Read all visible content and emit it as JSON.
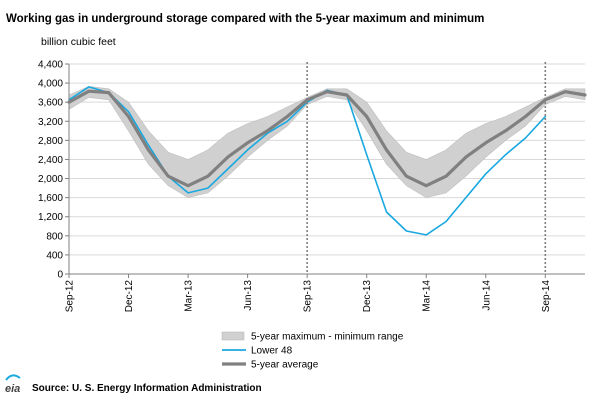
{
  "chart_data": {
    "type": "line",
    "title": "Working gas in underground storage compared with the  5-year maximum and minimum",
    "unit_label": "billion  cubic feet",
    "xlabel": "",
    "ylabel": "",
    "ylim": [
      0,
      4400
    ],
    "y_ticks": [
      0,
      400,
      800,
      1200,
      1600,
      2000,
      2400,
      2800,
      3200,
      3600,
      4000,
      4400
    ],
    "y_tick_labels": [
      "0",
      "400",
      "800",
      "1,200",
      "1,600",
      "2,000",
      "2,400",
      "2,800",
      "3,200",
      "3,600",
      "4,000",
      "4,400"
    ],
    "x_range": [
      "2012-09",
      "2014-11"
    ],
    "x_tick_labels": [
      "Sep-12",
      "Dec-12",
      "Mar-13",
      "Jun-13",
      "Sep-13",
      "Dec-13",
      "Mar-14",
      "Jun-14",
      "Sep-14"
    ],
    "x_ticks": [
      "2012-09",
      "2012-12",
      "2013-03",
      "2013-06",
      "2013-09",
      "2013-12",
      "2014-03",
      "2014-06",
      "2014-09"
    ],
    "vertical_markers": [
      "2013-09",
      "2014-09"
    ],
    "grid": true,
    "legend_position": "bottom",
    "x": [
      "2012-09",
      "2012-10",
      "2012-11",
      "2012-12",
      "2013-01",
      "2013-02",
      "2013-03",
      "2013-04",
      "2013-05",
      "2013-06",
      "2013-07",
      "2013-08",
      "2013-09",
      "2013-10",
      "2013-11",
      "2013-12",
      "2014-01",
      "2014-02",
      "2014-03",
      "2014-04",
      "2014-05",
      "2014-06",
      "2014-07",
      "2014-08",
      "2014-09",
      "2014-10",
      "2014-11"
    ],
    "series": [
      {
        "name": "5-year maximum - minimum range",
        "kind": "band",
        "color": "#d0d0d0",
        "upper": [
          3750,
          3930,
          3880,
          3600,
          3000,
          2550,
          2400,
          2600,
          2950,
          3150,
          3300,
          3500,
          3700,
          3880,
          3880,
          3600,
          3000,
          2550,
          2400,
          2600,
          2950,
          3150,
          3300,
          3500,
          3700,
          3880,
          3880
        ],
        "lower": [
          3450,
          3700,
          3650,
          3000,
          2300,
          1850,
          1600,
          1700,
          2050,
          2450,
          2800,
          3100,
          3550,
          3720,
          3650,
          3000,
          2300,
          1850,
          1600,
          1700,
          2050,
          2450,
          2800,
          3100,
          3550,
          3720,
          3650
        ]
      },
      {
        "name": "Lower 48",
        "kind": "line",
        "color": "#19a8e0",
        "values": [
          3650,
          3920,
          3800,
          3400,
          2700,
          2050,
          1700,
          1800,
          2200,
          2600,
          2950,
          3200,
          3600,
          3850,
          3750,
          2500,
          1300,
          900,
          820,
          1100,
          1600,
          2100,
          2500,
          2850,
          3300,
          null,
          null
        ]
      },
      {
        "name": "5-year average",
        "kind": "line",
        "color": "#808080",
        "values": [
          3600,
          3830,
          3800,
          3300,
          2600,
          2050,
          1850,
          2050,
          2450,
          2750,
          3000,
          3300,
          3650,
          3820,
          3750,
          3300,
          2600,
          2050,
          1850,
          2050,
          2450,
          2750,
          3000,
          3300,
          3650,
          3820,
          3750
        ]
      }
    ]
  },
  "source": "Source:  U. S. Energy Information Administration",
  "logo": "eia",
  "colors": {
    "axis": "#808080",
    "grid": "#d9d9d9",
    "marker": "#808080"
  }
}
